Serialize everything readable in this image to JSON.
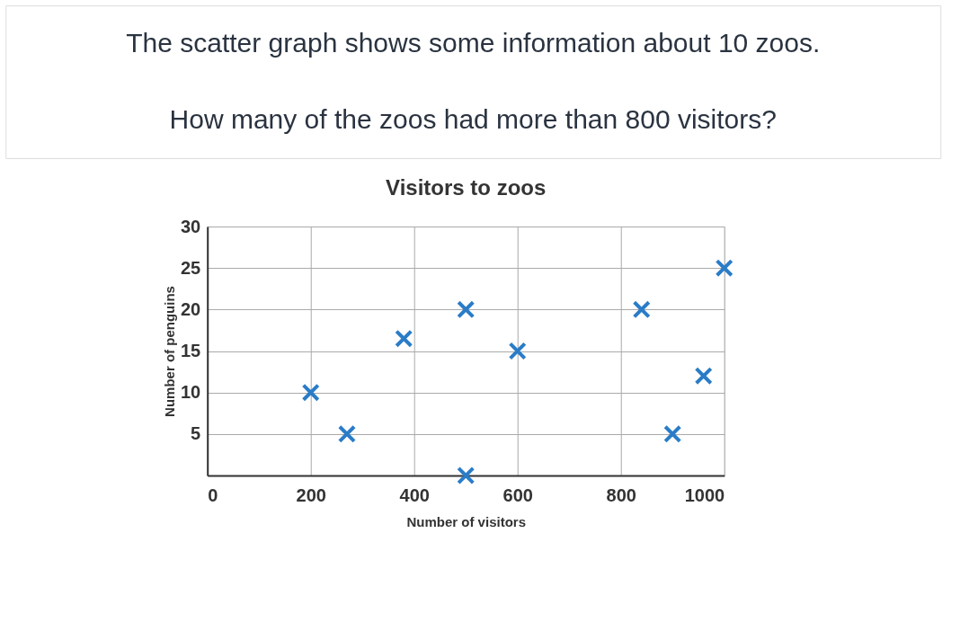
{
  "chart_data": {
    "type": "scatter",
    "title": "Visitors to zoos",
    "xlabel": "Number of visitors",
    "ylabel": "Number of penguins",
    "annotations": [
      "The scatter graph shows some information about 10 zoos.",
      "How many of the zoos had more than 800 visitors?"
    ],
    "x": [
      200,
      270,
      380,
      500,
      500,
      600,
      840,
      900,
      960,
      1000
    ],
    "series": [
      {
        "color": "#2a7cc7",
        "values": [
          10,
          5,
          16.5,
          20,
          0,
          15,
          20,
          5,
          12,
          25
        ]
      }
    ],
    "xlim": [
      0,
      1000
    ],
    "ylim": [
      0,
      30
    ],
    "xticks": [
      0,
      200,
      400,
      600,
      800,
      1000
    ],
    "yticks": [
      {
        "value": 0,
        "label": null
      },
      5,
      10,
      15,
      20,
      25,
      30
    ],
    "grid": true,
    "marker": "cross",
    "legend": false
  }
}
